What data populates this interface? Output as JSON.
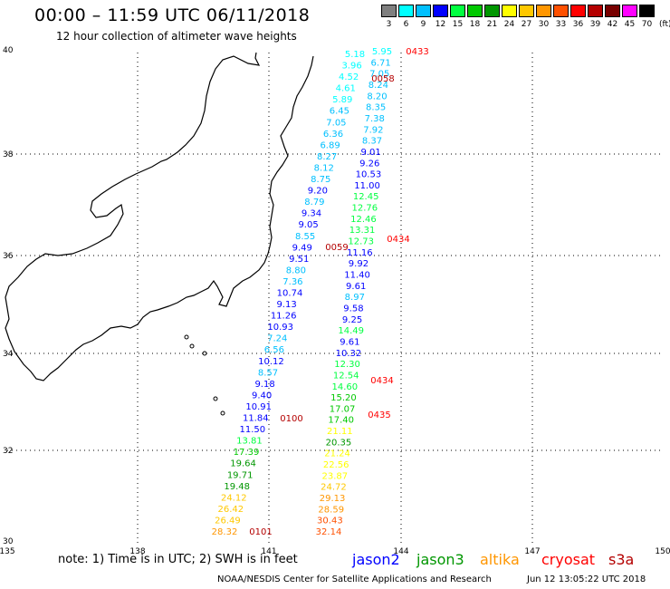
{
  "title": "00:00 – 11:59 UTC 06/11/2018",
  "subtitle": "12 hour collection of altimeter wave heights",
  "color_scale": {
    "labels": [
      "3",
      "6",
      "9",
      "12",
      "15",
      "18",
      "21",
      "24",
      "27",
      "30",
      "33",
      "36",
      "39",
      "42",
      "45",
      "70"
    ],
    "unit": "(ft)",
    "colors": [
      "#7f7f7f",
      "#00ffff",
      "#00c0ff",
      "#0000ff",
      "#00ff40",
      "#00c800",
      "#009600",
      "#ffff00",
      "#ffc800",
      "#ff9600",
      "#ff5000",
      "#ff0000",
      "#b40000",
      "#780000",
      "#ff00ff",
      "#000000"
    ]
  },
  "axes": {
    "lon_labels": [
      "135",
      "138",
      "141",
      "144",
      "147",
      "150"
    ],
    "lat_labels": [
      "40",
      "38",
      "36",
      "34",
      "32",
      "30"
    ]
  },
  "tracks": [
    {
      "values": [
        "5.18",
        "3.96",
        "4.52",
        "4.61",
        "5.89",
        "6.45",
        "7.05",
        "6.36",
        "6.89",
        "8.27",
        "8.12",
        "8.75",
        "9.20",
        "8.79",
        "9.34",
        "9.05",
        "8.55",
        "9.49",
        "9.51",
        "8.80",
        "7.36",
        "10.74",
        "9.13",
        "11.26",
        "10.93",
        "7.24",
        "6.56",
        "10.12",
        "8.57",
        "9.18",
        "9.40",
        "10.91",
        "11.84",
        "11.50",
        "13.81",
        "17.39",
        "19.64",
        "19.71",
        "19.48",
        "24.12",
        "26.42",
        "26.49",
        "28.32"
      ]
    },
    {
      "values": [
        "5.95",
        "6.71",
        "7.05",
        "8.24",
        "8.20",
        "8.35",
        "7.38",
        "7.92",
        "8.37",
        "9.01",
        "9.26",
        "10.53",
        "11.00",
        "12.45",
        "12.76",
        "12.46",
        "13.31",
        "12.73",
        "11.16",
        "9.92",
        "11.40",
        "9.61",
        "8.97",
        "9.58",
        "9.25",
        "14.49",
        "9.61",
        "10.32",
        "12.30",
        "12.54",
        "14.60",
        "15.20",
        "17.07",
        "17.40",
        "21.11",
        "20.35",
        "21.24",
        "22.56",
        "23.87",
        "24.72",
        "29.13",
        "28.59",
        "30.43",
        "32.14"
      ]
    }
  ],
  "time_labels": [
    "0433",
    "0058",
    "0434",
    "0059",
    "0434",
    "0435",
    "0100",
    "0101"
  ],
  "note": "note: 1) Time is in UTC; 2) SWH is in feet",
  "satellites": [
    {
      "name": "jason2",
      "color": "#0000ff"
    },
    {
      "name": "jason3",
      "color": "#009600"
    },
    {
      "name": "altika",
      "color": "#ff9600"
    },
    {
      "name": "cryosat",
      "color": "#ff0000"
    },
    {
      "name": "s3a",
      "color": "#b40000"
    }
  ],
  "credit": "NOAA/NESDIS Center for Satellite Applications and Research",
  "timestamp": "Jun 12 13:05:22 UTC 2018"
}
